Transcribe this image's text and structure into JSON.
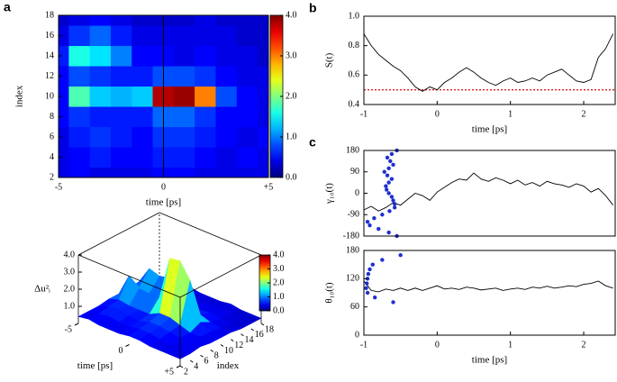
{
  "chart_data": [
    {
      "type": "heatmap",
      "panel": "a",
      "xlabel": "time [ps]",
      "ylabel": "index",
      "x": [
        -5,
        -4,
        -3,
        -2,
        -1,
        0,
        1,
        2,
        3,
        4,
        5
      ],
      "y": [
        2,
        4,
        6,
        8,
        10,
        12,
        14,
        16,
        18
      ],
      "z": [
        [
          0.4,
          0.5,
          0.4,
          0.4,
          0.4,
          0.5,
          0.5,
          0.4,
          0.4,
          0.4,
          0.4
        ],
        [
          0.4,
          0.5,
          0.6,
          0.5,
          0.5,
          0.6,
          0.6,
          0.5,
          0.4,
          0.5,
          0.4
        ],
        [
          0.4,
          0.6,
          0.7,
          0.6,
          0.5,
          0.7,
          0.7,
          0.6,
          0.5,
          0.4,
          0.5
        ],
        [
          0.5,
          0.7,
          0.6,
          0.6,
          0.6,
          0.9,
          0.9,
          0.7,
          0.5,
          0.5,
          0.4
        ],
        [
          0.5,
          1.8,
          1.3,
          1.2,
          1.3,
          3.8,
          3.9,
          3.0,
          0.8,
          0.5,
          0.4
        ],
        [
          0.5,
          0.8,
          0.7,
          0.6,
          0.6,
          0.8,
          0.8,
          0.7,
          0.5,
          0.4,
          0.4
        ],
        [
          0.6,
          1.6,
          1.4,
          1.0,
          0.5,
          0.5,
          0.4,
          0.5,
          0.4,
          0.4,
          0.3
        ],
        [
          0.4,
          0.7,
          0.9,
          0.6,
          0.4,
          0.4,
          0.4,
          0.4,
          0.4,
          0.3,
          0.3
        ],
        [
          0.3,
          0.4,
          0.5,
          0.4,
          0.3,
          0.3,
          0.3,
          0.4,
          0.3,
          0.3,
          0.3
        ]
      ],
      "xlim": [
        -5,
        5
      ],
      "xticks": [
        -5,
        0,
        {
          "value": 5,
          "label": "+5"
        }
      ],
      "ylim": [
        2,
        18
      ],
      "yticks": [
        2,
        4,
        6,
        8,
        10,
        12,
        14,
        16,
        18
      ],
      "clim": [
        0,
        4
      ],
      "cticks": [
        {
          "value": 0,
          "label": "0.0"
        },
        {
          "value": 1,
          "label": "1.0"
        },
        {
          "value": 2,
          "label": "2.0"
        },
        {
          "value": 3,
          "label": "3.0"
        },
        {
          "value": 4,
          "label": "4.0"
        }
      ],
      "colormap": "jet",
      "vline": 0
    },
    {
      "type": "surface3d",
      "xlabel": "time [ps]",
      "ylabel": "index",
      "zlabel": "Δu²ᵢ",
      "xlim": [
        -5,
        5
      ],
      "xticks": [
        -5,
        0,
        {
          "value": 5,
          "label": "+5"
        }
      ],
      "ylim": [
        2,
        18
      ],
      "yticks": [
        2,
        4,
        6,
        8,
        10,
        12,
        14,
        16,
        18
      ],
      "zlim": [
        0,
        4
      ],
      "zticks": [
        {
          "value": 1,
          "label": "1.0"
        },
        {
          "value": 2,
          "label": "2.0"
        },
        {
          "value": 3,
          "label": "3.0"
        },
        {
          "value": 4,
          "label": "4.0"
        }
      ],
      "clim": [
        0,
        4
      ],
      "cticks": [
        {
          "value": 0,
          "label": "0.0"
        },
        {
          "value": 1,
          "label": "1.0"
        },
        {
          "value": 2,
          "label": "2.0"
        },
        {
          "value": 3,
          "label": "3.0"
        },
        {
          "value": 4,
          "label": "4.0"
        }
      ],
      "colormap": "jet"
    },
    {
      "type": "line",
      "panel": "b",
      "xlabel": "time [ps]",
      "ylabel": "S(t)",
      "x": [
        -1,
        -0.9,
        -0.8,
        -0.7,
        -0.6,
        -0.5,
        -0.4,
        -0.3,
        -0.2,
        -0.1,
        0,
        0.1,
        0.2,
        0.3,
        0.4,
        0.5,
        0.6,
        0.7,
        0.8,
        0.9,
        1,
        1.1,
        1.2,
        1.3,
        1.4,
        1.5,
        1.6,
        1.7,
        1.8,
        1.9,
        2,
        2.1,
        2.2,
        2.3,
        2.4
      ],
      "series": [
        {
          "color": "#000000",
          "mode": "line",
          "values": [
            0.88,
            0.8,
            0.74,
            0.7,
            0.66,
            0.63,
            0.58,
            0.52,
            0.49,
            0.52,
            0.5,
            0.55,
            0.58,
            0.62,
            0.65,
            0.62,
            0.58,
            0.55,
            0.53,
            0.56,
            0.58,
            0.55,
            0.56,
            0.58,
            0.56,
            0.6,
            0.62,
            0.64,
            0.6,
            0.56,
            0.55,
            0.57,
            0.72,
            0.78,
            0.88
          ]
        }
      ],
      "hline": {
        "value": 0.5,
        "color": "#e02020"
      },
      "xlim": [
        -1,
        2.43
      ],
      "xticks": [
        -1,
        0,
        1,
        2
      ],
      "ylim": [
        0.4,
        1
      ],
      "yticks": [
        0.4,
        0.6,
        0.8,
        {
          "value": 1,
          "label": "1.0"
        }
      ]
    },
    {
      "type": "line",
      "panel": "c",
      "ylabel": "γ₁₀(t)",
      "x": [
        -1,
        -0.9,
        -0.8,
        -0.7,
        -0.6,
        -0.5,
        -0.4,
        -0.3,
        -0.2,
        -0.1,
        0,
        0.1,
        0.2,
        0.3,
        0.4,
        0.5,
        0.6,
        0.7,
        0.8,
        0.9,
        1,
        1.1,
        1.2,
        1.3,
        1.4,
        1.5,
        1.6,
        1.7,
        1.8,
        1.9,
        2,
        2.1,
        2.2,
        2.3,
        2.4
      ],
      "series": [
        {
          "color": "#000000",
          "mode": "line",
          "values": [
            -70,
            -55,
            -75,
            -60,
            -40,
            -50,
            -25,
            0,
            -10,
            -30,
            5,
            25,
            45,
            60,
            55,
            85,
            60,
            50,
            65,
            55,
            40,
            55,
            35,
            45,
            30,
            50,
            40,
            35,
            25,
            40,
            30,
            5,
            20,
            -10,
            -50
          ]
        },
        {
          "color": "#1f2fd0",
          "mode": "markers",
          "x": [
            -0.55,
            -0.62,
            -0.68,
            -0.64,
            -0.6,
            -0.66,
            -0.72,
            -0.68,
            -0.62,
            -0.66,
            -0.7,
            -0.69,
            -0.66,
            -0.62,
            -0.6,
            -0.58,
            -0.58,
            -0.65,
            -0.75,
            -0.86,
            -0.95,
            -0.92,
            -0.8,
            -0.66,
            -0.55
          ],
          "values": [
            180,
            165,
            150,
            135,
            120,
            105,
            90,
            75,
            60,
            45,
            30,
            15,
            0,
            -15,
            -30,
            -45,
            -60,
            -75,
            -90,
            -105,
            -120,
            -135,
            -150,
            -165,
            -180
          ]
        }
      ],
      "xlim": [
        -1,
        2.43
      ],
      "ylim": [
        -180,
        180
      ],
      "yticks": [
        -180,
        -90,
        0,
        90,
        180
      ]
    },
    {
      "type": "line",
      "xlabel": "time [ps]",
      "ylabel": "θ₁₀(t)",
      "x": [
        -1,
        -0.9,
        -0.8,
        -0.7,
        -0.6,
        -0.5,
        -0.4,
        -0.3,
        -0.2,
        -0.1,
        0,
        0.1,
        0.2,
        0.3,
        0.4,
        0.5,
        0.6,
        0.7,
        0.8,
        0.9,
        1,
        1.1,
        1.2,
        1.3,
        1.4,
        1.5,
        1.6,
        1.7,
        1.8,
        1.9,
        2,
        2.1,
        2.2,
        2.3,
        2.4
      ],
      "series": [
        {
          "color": "#000000",
          "mode": "line",
          "values": [
            115,
            95,
            92,
            98,
            95,
            100,
            95,
            100,
            95,
            100,
            105,
            98,
            100,
            97,
            102,
            100,
            96,
            98,
            100,
            95,
            98,
            100,
            97,
            102,
            100,
            104,
            100,
            102,
            105,
            103,
            108,
            110,
            115,
            105,
            100
          ]
        },
        {
          "color": "#1f2fd0",
          "mode": "markers",
          "x": [
            -0.5,
            -0.75,
            -0.88,
            -0.92,
            -0.94,
            -0.95,
            -0.96,
            -0.97,
            -0.95,
            -0.85,
            -0.6
          ],
          "values": [
            170,
            160,
            150,
            140,
            130,
            120,
            110,
            100,
            90,
            80,
            70
          ]
        }
      ],
      "xlim": [
        -1,
        2.43
      ],
      "xticks": [
        -1,
        0,
        1,
        2
      ],
      "ylim": [
        0,
        180
      ],
      "yticks": [
        0,
        60,
        120,
        180
      ]
    }
  ]
}
